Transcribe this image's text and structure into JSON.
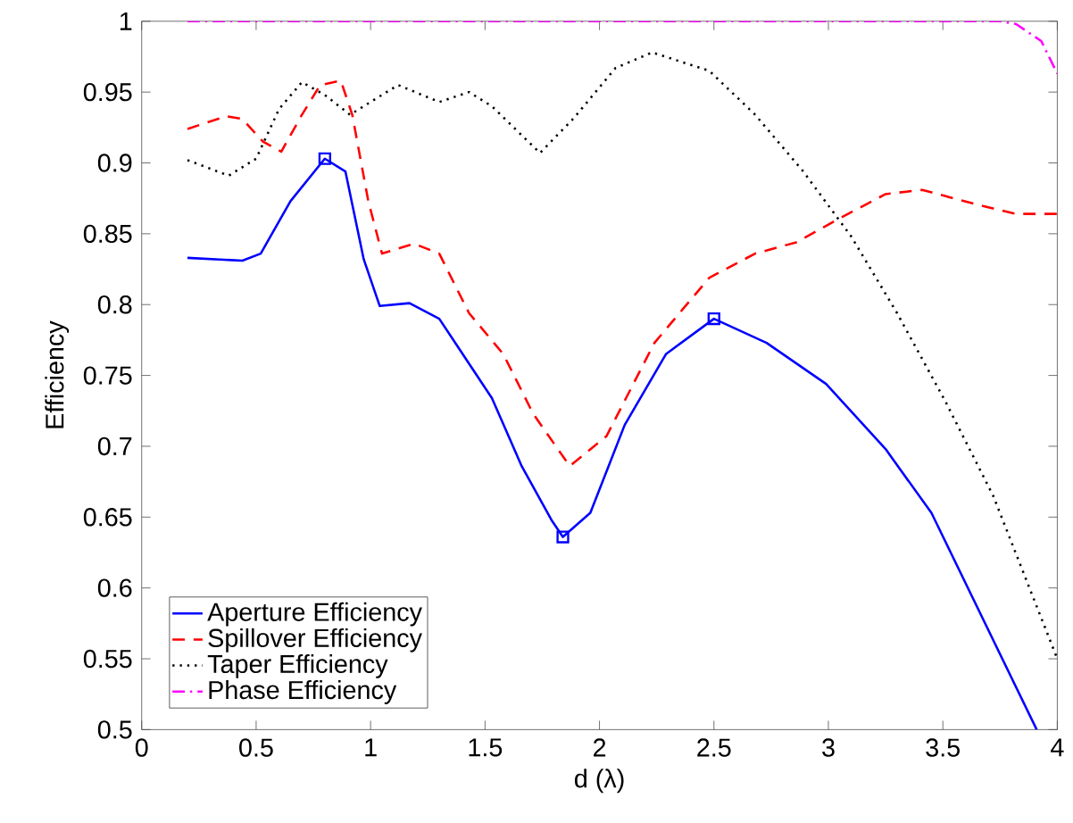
{
  "chart_data": {
    "type": "line",
    "xlabel": "d (λ)",
    "ylabel": "Efficiency",
    "xlim": [
      0,
      4
    ],
    "ylim": [
      0.5,
      1
    ],
    "xticks": [
      0,
      0.5,
      1,
      1.5,
      2,
      2.5,
      3,
      3.5,
      4
    ],
    "yticks": [
      0.5,
      0.55,
      0.6,
      0.65,
      0.7,
      0.75,
      0.8,
      0.85,
      0.9,
      0.95,
      1
    ],
    "grid": false,
    "legend": "bottom left",
    "series": [
      {
        "name": "Aperture Efficiency",
        "color": "#0000ff",
        "line_style": "solid",
        "x": [
          0.2,
          0.44,
          0.52,
          0.65,
          0.8,
          0.89,
          0.97,
          1.04,
          1.17,
          1.3,
          1.53,
          1.66,
          1.79,
          1.84,
          1.96,
          2.11,
          2.29,
          2.5,
          2.73,
          2.99,
          3.25,
          3.45,
          3.91
        ],
        "values": [
          0.833,
          0.831,
          0.836,
          0.873,
          0.903,
          0.894,
          0.832,
          0.799,
          0.801,
          0.79,
          0.734,
          0.686,
          0.648,
          0.636,
          0.653,
          0.715,
          0.765,
          0.79,
          0.773,
          0.744,
          0.698,
          0.653,
          0.5
        ]
      },
      {
        "name": "Spillover Efficiency",
        "color": "#ff0000",
        "line_style": "dashed",
        "x": [
          0.2,
          0.37,
          0.44,
          0.53,
          0.61,
          0.7,
          0.78,
          0.87,
          0.92,
          0.99,
          1.05,
          1.19,
          1.3,
          1.43,
          1.58,
          1.71,
          1.87,
          2.03,
          2.24,
          2.48,
          2.68,
          2.86,
          3.05,
          3.25,
          3.41,
          3.64,
          3.82,
          4.0
        ],
        "values": [
          0.924,
          0.933,
          0.931,
          0.915,
          0.908,
          0.934,
          0.955,
          0.958,
          0.934,
          0.873,
          0.836,
          0.843,
          0.836,
          0.794,
          0.765,
          0.723,
          0.686,
          0.707,
          0.773,
          0.819,
          0.836,
          0.844,
          0.861,
          0.878,
          0.881,
          0.871,
          0.864,
          0.864
        ]
      },
      {
        "name": "Taper Efficiency",
        "color": "#000000",
        "line_style": "dotted",
        "x": [
          0.2,
          0.38,
          0.5,
          0.6,
          0.7,
          0.8,
          0.91,
          1.12,
          1.3,
          1.43,
          1.53,
          1.74,
          1.89,
          2.07,
          2.23,
          2.48,
          2.68,
          2.89,
          3.1,
          3.3,
          3.51,
          3.72,
          4.0
        ],
        "values": [
          0.902,
          0.891,
          0.903,
          0.938,
          0.957,
          0.948,
          0.934,
          0.955,
          0.943,
          0.95,
          0.94,
          0.907,
          0.932,
          0.967,
          0.978,
          0.965,
          0.934,
          0.894,
          0.848,
          0.794,
          0.732,
          0.665,
          0.55
        ]
      },
      {
        "name": "Phase Efficiency",
        "color": "#ff00ff",
        "line_style": "dashdot",
        "x": [
          0.2,
          1.0,
          2.0,
          3.0,
          3.75,
          3.82,
          3.93,
          4.0
        ],
        "values": [
          1,
          1,
          1,
          1,
          1,
          0.998,
          0.986,
          0.963
        ]
      },
      {
        "type": "scatter",
        "color": "#0000ff",
        "marker": "square",
        "x": [
          0.8,
          1.84,
          2.5
        ],
        "values": [
          0.903,
          0.636,
          0.79
        ]
      }
    ]
  }
}
